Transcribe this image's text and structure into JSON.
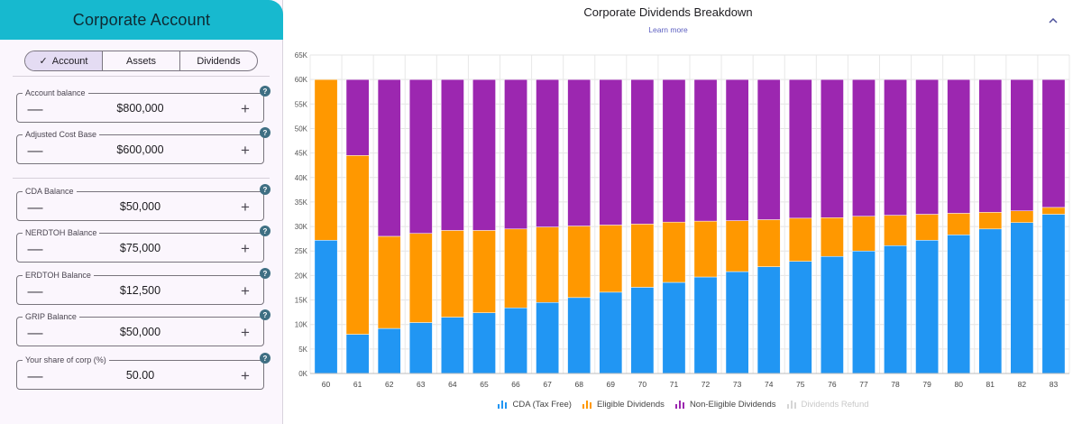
{
  "panel": {
    "title": "Corporate Account",
    "tabs": [
      {
        "label": "Account",
        "active": true
      },
      {
        "label": "Assets",
        "active": false
      },
      {
        "label": "Dividends",
        "active": false
      }
    ],
    "fields": [
      {
        "label": "Account balance",
        "value": "$800,000"
      },
      {
        "label": "Adjusted Cost Base",
        "value": "$600,000"
      },
      {
        "label": "CDA Balance",
        "value": "$50,000"
      },
      {
        "label": "NERDTOH Balance",
        "value": "$75,000"
      },
      {
        "label": "ERDTOH Balance",
        "value": "$12,500"
      },
      {
        "label": "GRIP Balance",
        "value": "$50,000"
      },
      {
        "label": "Your share of corp (%)",
        "value": "50.00"
      }
    ],
    "help_glyph": "?",
    "minus_glyph": "—",
    "plus_glyph": "+",
    "check_glyph": "✓"
  },
  "chart": {
    "title": "Corporate Dividends Breakdown",
    "learn_more": "Learn more"
  },
  "colors": {
    "cda": "#2196f3",
    "eligible": "#ff9800",
    "non_eligible": "#9c27b0",
    "refund": "#d0d0d0",
    "header": "#17b9cf"
  },
  "chart_data": {
    "type": "bar",
    "stacked": true,
    "title": "Corporate Dividends Breakdown",
    "xlabel": "",
    "ylabel": "",
    "ylim": [
      0,
      65000
    ],
    "y_ticks": [
      "0K",
      "5K",
      "10K",
      "15K",
      "20K",
      "25K",
      "30K",
      "35K",
      "40K",
      "45K",
      "50K",
      "55K",
      "60K",
      "65K"
    ],
    "y_tick_values": [
      0,
      5000,
      10000,
      15000,
      20000,
      25000,
      30000,
      35000,
      40000,
      45000,
      50000,
      55000,
      60000,
      65000
    ],
    "categories": [
      "60",
      "61",
      "62",
      "63",
      "64",
      "65",
      "66",
      "67",
      "68",
      "69",
      "70",
      "71",
      "72",
      "73",
      "74",
      "75",
      "76",
      "77",
      "78",
      "79",
      "80",
      "81",
      "82",
      "83"
    ],
    "series": [
      {
        "name": "CDA (Tax Free)",
        "color": "#2196f3",
        "visible": true,
        "values": [
          27200,
          8000,
          9200,
          10400,
          11500,
          12400,
          13400,
          14500,
          15500,
          16600,
          17600,
          18600,
          19700,
          20800,
          21800,
          22900,
          23900,
          25000,
          26100,
          27200,
          28300,
          29500,
          30800,
          32500
        ]
      },
      {
        "name": "Eligible Dividends",
        "color": "#ff9800",
        "visible": true,
        "values": [
          32800,
          36500,
          18800,
          18200,
          17700,
          16800,
          16100,
          15400,
          14600,
          13700,
          12900,
          12300,
          11400,
          10400,
          9600,
          8800,
          7900,
          7100,
          6200,
          5300,
          4400,
          3400,
          2400,
          1400
        ]
      },
      {
        "name": "Non-Eligible Dividends",
        "color": "#9c27b0",
        "visible": true,
        "values": [
          0,
          15500,
          32000,
          31400,
          30800,
          30800,
          30500,
          30100,
          29900,
          29700,
          29500,
          29100,
          28900,
          28800,
          28600,
          28300,
          28200,
          27900,
          27700,
          27500,
          27300,
          27100,
          26800,
          26100
        ]
      },
      {
        "name": "Dividends Refund",
        "color": "#d0d0d0",
        "visible": false,
        "values": [
          0,
          0,
          0,
          0,
          0,
          0,
          0,
          0,
          0,
          0,
          0,
          0,
          0,
          0,
          0,
          0,
          0,
          0,
          0,
          0,
          0,
          0,
          0,
          0
        ]
      }
    ],
    "legend_position": "bottom",
    "grid": true
  }
}
